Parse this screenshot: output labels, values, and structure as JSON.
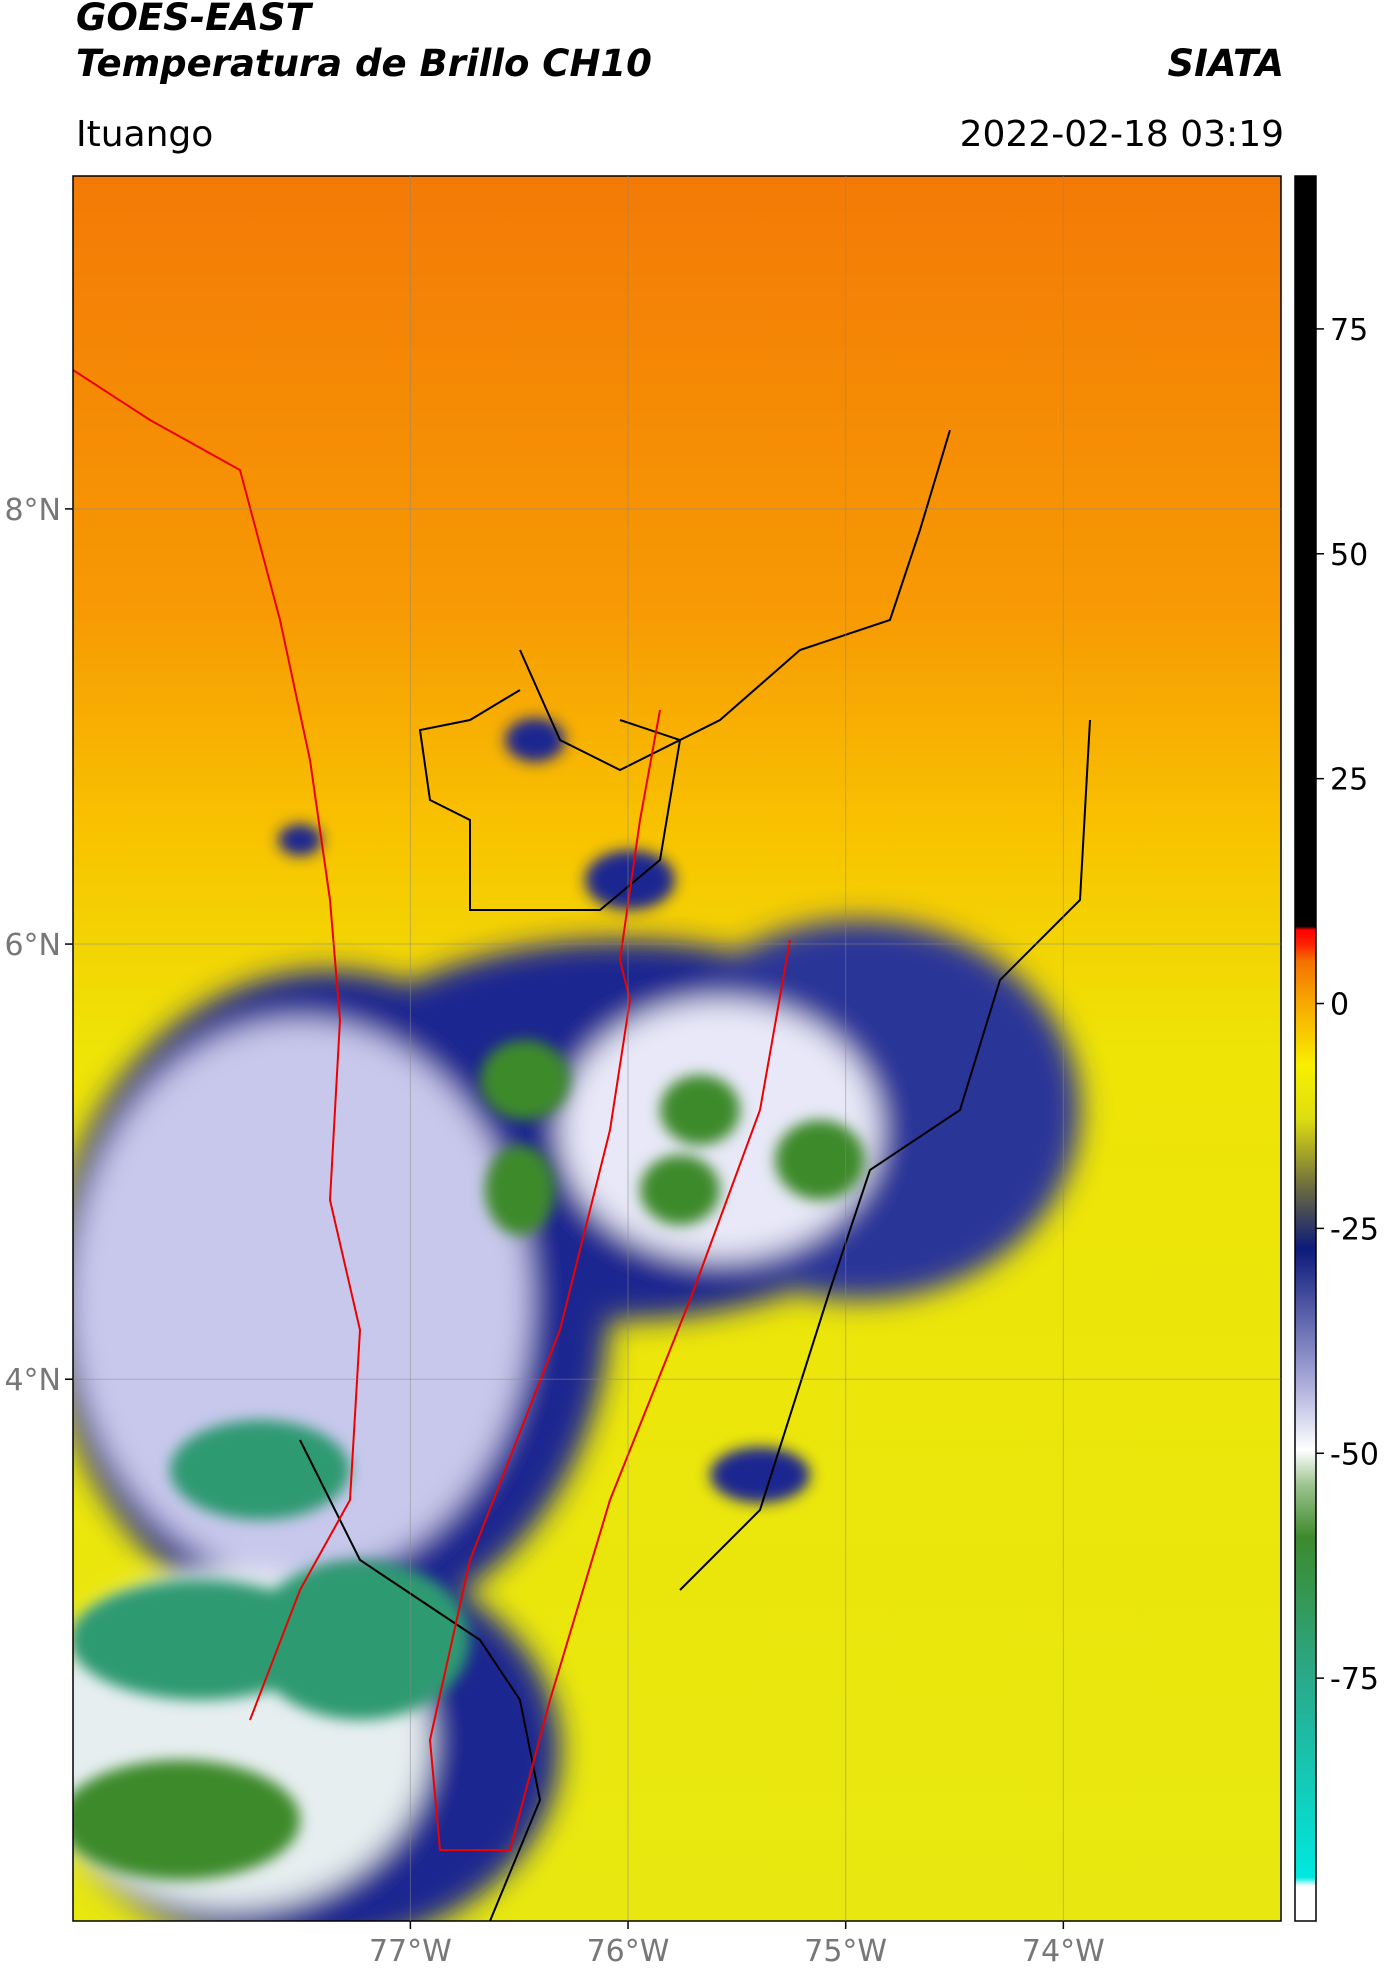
{
  "header": {
    "title_line1": "GOES-EAST",
    "title_line2": "Temperatura de Brillo CH10",
    "source": "SIATA",
    "region": "Ituango",
    "timestamp": "2022-02-18 03:19"
  },
  "map": {
    "latlim": [
      1.51,
      9.53
    ],
    "lonlim": [
      -78.55,
      -73.0
    ],
    "grid": true,
    "lat_ticks": [
      {
        "value": 8,
        "label": "8°N"
      },
      {
        "value": 6,
        "label": "6°N"
      },
      {
        "value": 4,
        "label": "4°N"
      }
    ],
    "lon_ticks": [
      {
        "value": -77,
        "label": "77°W"
      },
      {
        "value": -76,
        "label": "76°W"
      },
      {
        "value": -75,
        "label": "75°W"
      },
      {
        "value": -74,
        "label": "74°W"
      }
    ]
  },
  "colorbar": {
    "lim": [
      -102,
      92
    ],
    "ticks": [
      75,
      50,
      25,
      0,
      -25,
      -50,
      -75
    ]
  }
}
